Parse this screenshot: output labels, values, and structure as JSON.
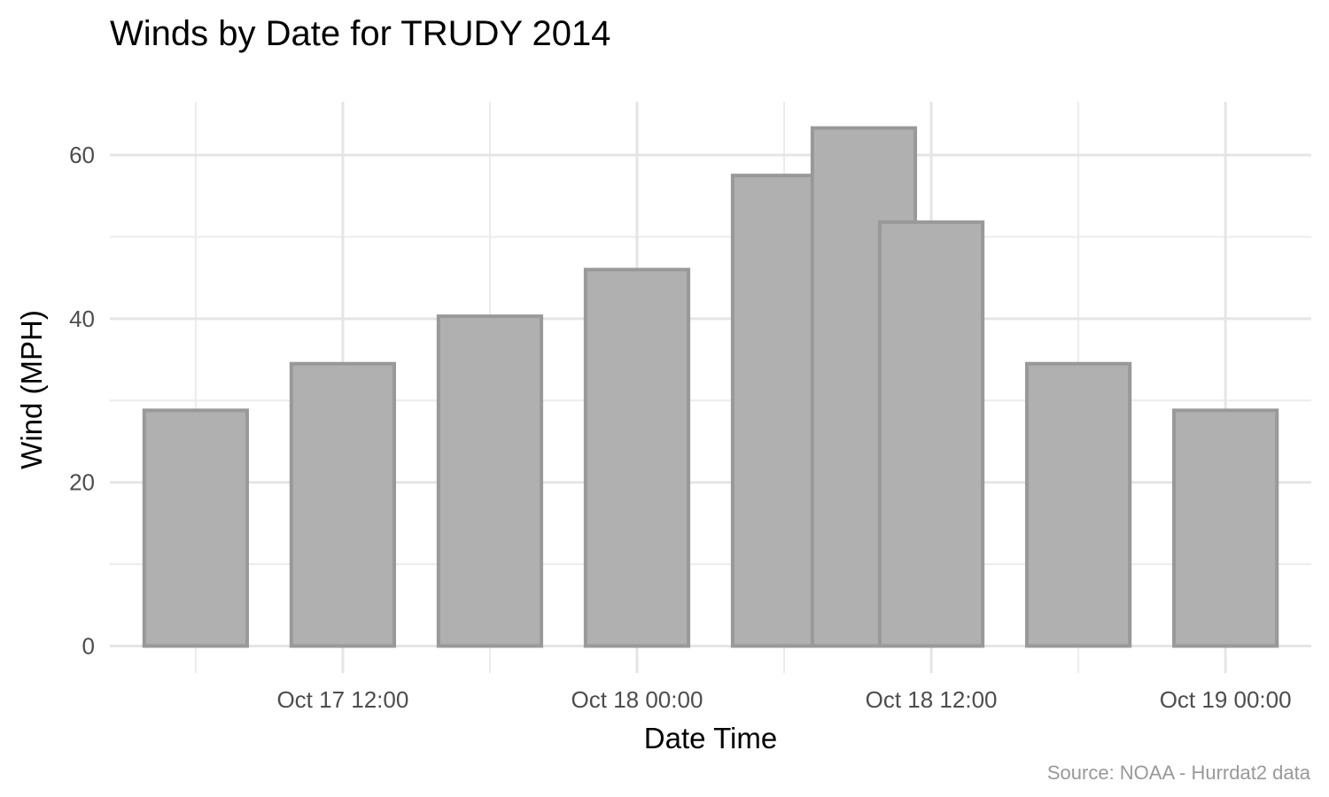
{
  "chart_data": {
    "type": "bar",
    "title": "Winds by Date for TRUDY 2014",
    "xlabel": "Date Time",
    "ylabel": "Wind (MPH)",
    "caption": "Source: NOAA - Hurrdat2 data",
    "x": [
      "2014-10-17 06:00",
      "2014-10-17 12:00",
      "2014-10-17 18:00",
      "2014-10-18 00:00",
      "2014-10-18 06:00",
      "2014-10-18 09:15",
      "2014-10-18 12:00",
      "2014-10-18 18:00",
      "2014-10-19 00:00"
    ],
    "values": [
      28.8,
      34.5,
      40.3,
      46.0,
      57.5,
      63.3,
      51.8,
      34.5,
      28.8
    ],
    "xlim": [
      "2014-10-17 02:30",
      "2014-10-19 03:30"
    ],
    "x_ticks": [
      "2014-10-17 12:00",
      "2014-10-18 00:00",
      "2014-10-18 12:00",
      "2014-10-19 00:00"
    ],
    "x_tick_labels": [
      "Oct 17 12:00",
      "Oct 18 00:00",
      "Oct 18 12:00",
      "Oct 19 00:00"
    ],
    "ylim": [
      -3.3,
      66.5
    ],
    "y_ticks": [
      0,
      20,
      40,
      60
    ],
    "y_tick_labels": [
      "0",
      "20",
      "40",
      "60"
    ],
    "grid": true,
    "legend": "none"
  }
}
